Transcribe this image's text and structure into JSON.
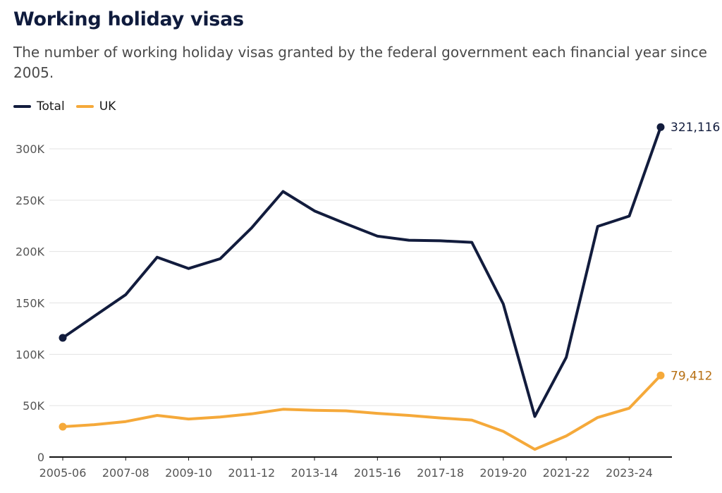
{
  "title": "Working holiday visas",
  "subtitle": "The number of working holiday visas granted by the federal government each financial year since 2005.",
  "legend": [
    {
      "label": "Total",
      "color": "#121c3d"
    },
    {
      "label": "UK",
      "color": "#f5a93a"
    }
  ],
  "end_labels": {
    "total": "321,116",
    "uk": "79,412",
    "uk_color": "#b76f12"
  },
  "chart_data": {
    "type": "line",
    "x": [
      "2005-06",
      "2006-07",
      "2007-08",
      "2008-09",
      "2009-10",
      "2010-11",
      "2011-12",
      "2012-13",
      "2013-14",
      "2014-15",
      "2015-16",
      "2016-17",
      "2017-18",
      "2018-19",
      "2019-20",
      "2020-21",
      "2021-22",
      "2022-23",
      "2023-24",
      "2024-25"
    ],
    "x_tick_labels": [
      "2005-06",
      "2007-08",
      "2009-10",
      "2011-12",
      "2013-14",
      "2015-16",
      "2017-18",
      "2019-20",
      "2021-22",
      "2023-24"
    ],
    "series": [
      {
        "name": "Total",
        "color": "#121c3d",
        "values": [
          116000,
          137000,
          158000,
          194500,
          183500,
          193000,
          223000,
          258500,
          239500,
          227000,
          215000,
          211000,
          210500,
          209000,
          149000,
          39500,
          97000,
          224500,
          234500,
          321116
        ]
      },
      {
        "name": "UK",
        "color": "#f5a93a",
        "values": [
          29500,
          31500,
          34500,
          40500,
          37000,
          39000,
          42000,
          46500,
          45500,
          45000,
          42500,
          40500,
          38000,
          36000,
          25000,
          7500,
          20500,
          38500,
          47500,
          79412
        ]
      }
    ],
    "y_ticks": [
      0,
      50000,
      100000,
      150000,
      200000,
      250000,
      300000
    ],
    "y_tick_labels": [
      "0",
      "50K",
      "100K",
      "150K",
      "200K",
      "250K",
      "300K"
    ],
    "ylim": [
      0,
      330000
    ],
    "grid": true,
    "legend_position": "top-left",
    "xlabel": "",
    "ylabel": ""
  }
}
